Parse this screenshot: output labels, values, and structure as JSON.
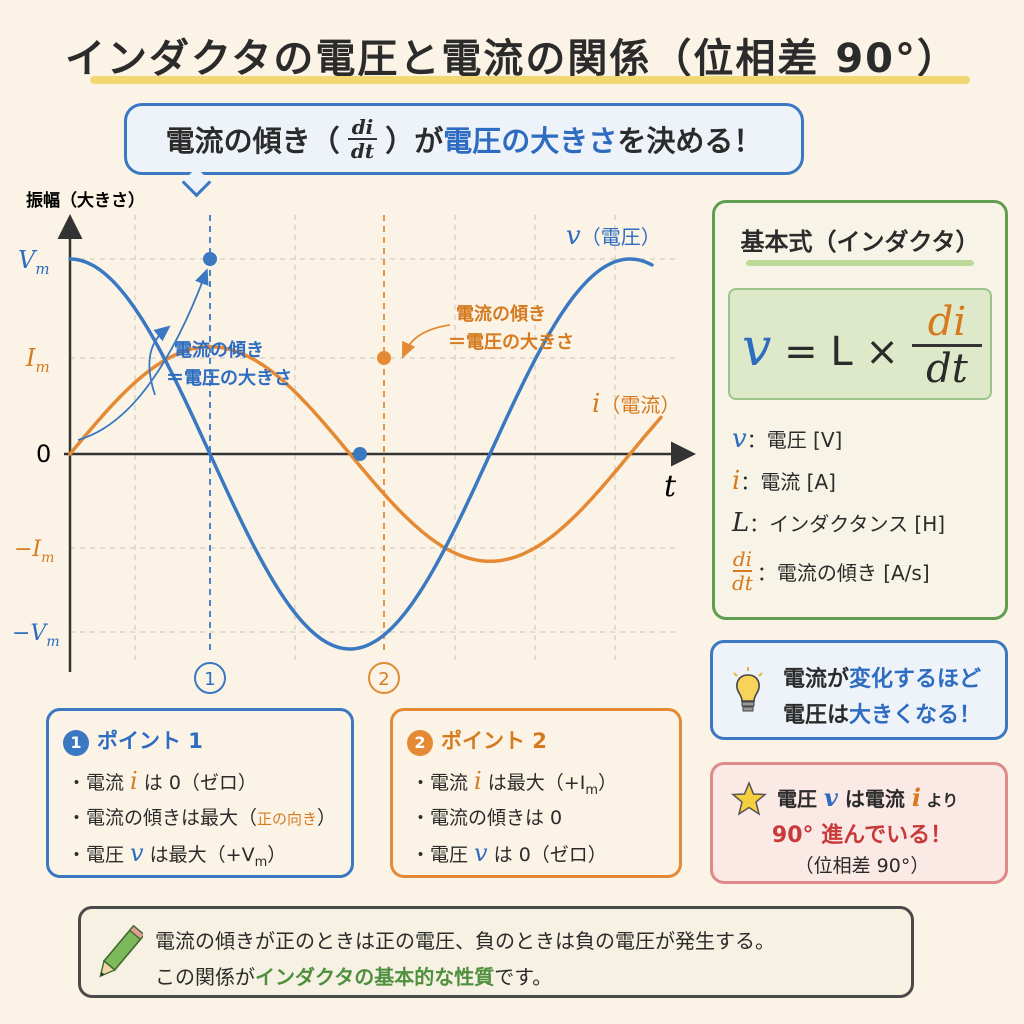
{
  "title": "インダクタの電圧と電流の関係（位相差 90°）",
  "bubble": {
    "part1": "電流の傾き（",
    "frac_num": "di",
    "frac_den": "dt",
    "part2": "）が",
    "part3": "電圧の大きさ",
    "part4": "を決める！"
  },
  "graph": {
    "y_axis_label": "振幅（大きさ）",
    "x_axis_label": "t",
    "ticks": {
      "vm": "V",
      "vm_sub": "m",
      "im": "I",
      "im_sub": "m",
      "zero": "0",
      "neg_im": "−I",
      "neg_im_sub": "m",
      "neg_vm": "−V",
      "neg_vm_sub": "m"
    },
    "voltage_label_sym": "v",
    "voltage_label": "（電圧）",
    "current_label_sym": "i",
    "current_label": "（電流）",
    "annot1_line1": "電流の傾き",
    "annot1_line2": "＝電圧の大きさ",
    "annot2_line1": "電流の傾き",
    "annot2_line2": "＝電圧の大きさ",
    "marker1": "1",
    "marker2": "2"
  },
  "chart_data": {
    "type": "line",
    "x_range": [
      0,
      1.9
    ],
    "ylim": [
      -1.1,
      1.1
    ],
    "series": [
      {
        "name": "v（電圧）",
        "color": "#3a78c2",
        "function": "cos",
        "amplitude": 1.0,
        "phase_lead_deg": 90
      },
      {
        "name": "i（電流）",
        "color": "#e48a34",
        "function": "sin",
        "amplitude": 0.55,
        "phase_lead_deg": 0
      }
    ],
    "xlabel": "t",
    "ylabel": "振幅（大きさ）",
    "grid": true
  },
  "formula": {
    "title": "基本式（インダクタ）",
    "lhs": "v",
    "eq": " = L × ",
    "frac_num": "di",
    "frac_den": "dt",
    "legend": [
      {
        "sym": "v",
        "text": "：電圧 [V]",
        "color": "#2d6cc0"
      },
      {
        "sym": "i",
        "text": "：電流 [A]",
        "color": "#e48a34"
      },
      {
        "sym": "L",
        "text": "：インダクタンス [H]",
        "color": "#2b2b2b"
      }
    ],
    "legend_frac_num": "di",
    "legend_frac_den": "dt",
    "legend_frac_text": "：電流の傾き [A/s]"
  },
  "note_blue": {
    "line1a": "電流が",
    "line1b": "変化するほど",
    "line2a": "電圧は",
    "line2b": "大きくなる！"
  },
  "note_red": {
    "line1a": "電圧 ",
    "line1b": "v",
    "line1c": " は電流 ",
    "line1d": "i",
    "line1e": " より",
    "line2": "90° 進んでいる！",
    "line3": "（位相差 90°）"
  },
  "point1": {
    "num": "1",
    "title": "ポイント 1",
    "item1a": "・電流 ",
    "item1b": "i",
    "item1c": " は 0（ゼロ）",
    "item2a": "・電流の傾きは最大（",
    "item2b": "正の向き",
    "item2c": "）",
    "item3a": "・電圧 ",
    "item3b": "v",
    "item3c": " は最大（+V",
    "item3d": "m",
    "item3e": "）"
  },
  "point2": {
    "num": "2",
    "title": "ポイント 2",
    "item1a": "・電流 ",
    "item1b": "i",
    "item1c": " は最大（+I",
    "item1d": "m",
    "item1e": "）",
    "item2": "・電流の傾きは 0",
    "item3a": "・電圧 ",
    "item3b": "v",
    "item3c": " は 0（ゼロ）"
  },
  "summary": {
    "line1": "電流の傾きが正のときは正の電圧、負のときは負の電圧が発生する。",
    "line2a": "この関係が",
    "line2b": "インダクタの基本的な性質",
    "line2c": "です。"
  },
  "colors": {
    "voltage": "#3a78c2",
    "current": "#e48a34",
    "green": "#5f9d4f",
    "red": "#c83a3a"
  }
}
